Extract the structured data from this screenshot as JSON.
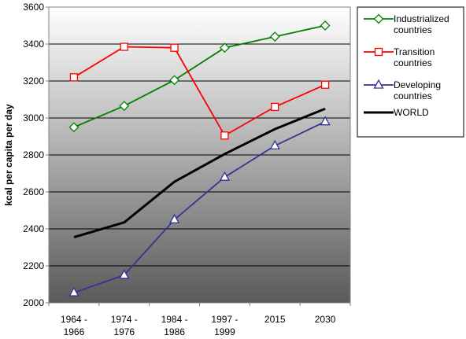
{
  "chart_data": {
    "type": "line",
    "title": "",
    "xlabel": "",
    "ylabel": "kcal per capita per day",
    "categories": [
      [
        "1964 -",
        "1966"
      ],
      [
        "1974 -",
        "1976"
      ],
      [
        "1984 -",
        "1986"
      ],
      [
        "1997 -",
        "1999"
      ],
      [
        "2015"
      ],
      [
        "2030"
      ]
    ],
    "ylim": [
      2000,
      3600
    ],
    "yticks": [
      2000,
      2200,
      2400,
      2600,
      2800,
      3000,
      3200,
      3400,
      3600
    ],
    "grid": "horizontal",
    "legend_position": "right",
    "series": [
      {
        "name": [
          "Industrialized",
          "countries"
        ],
        "color": "#008000",
        "marker": "diamond",
        "values": [
          2950,
          3065,
          3205,
          3380,
          3440,
          3500
        ]
      },
      {
        "name": [
          "Transition",
          "countries"
        ],
        "color": "#ff0000",
        "marker": "square",
        "values": [
          3220,
          3385,
          3380,
          2905,
          3060,
          3180
        ]
      },
      {
        "name": [
          "Developing",
          "countries"
        ],
        "color": "#333399",
        "marker": "triangle",
        "values": [
          2055,
          2150,
          2450,
          2680,
          2850,
          2980
        ]
      },
      {
        "name": [
          "WORLD"
        ],
        "color": "#000000",
        "marker": "none",
        "values": [
          2355,
          2435,
          2655,
          2805,
          2940,
          3050
        ]
      }
    ]
  }
}
